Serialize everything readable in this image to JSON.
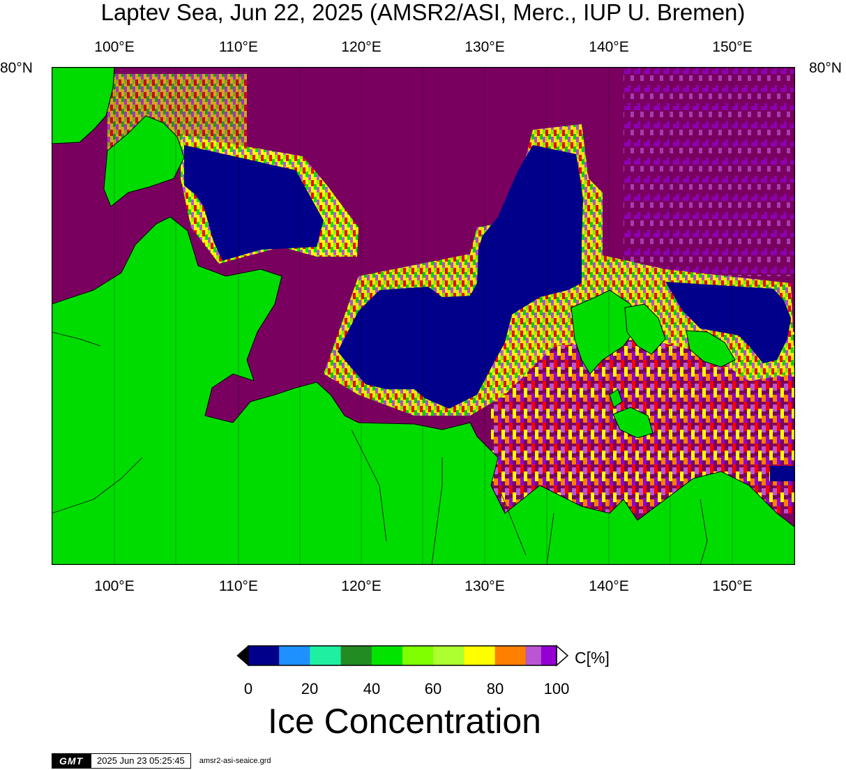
{
  "title": "Laptev Sea, Jun 22, 2025 (AMSR2/ASI, Merc., IUP U. Bremen)",
  "lon_labels": [
    "100°E",
    "110°E",
    "120°E",
    "130°E",
    "140°E",
    "150°E"
  ],
  "lat_label_left": "80°N",
  "lat_label_right": "80°N",
  "colorbar": {
    "unit": "C[%]",
    "label": "Ice Concentration",
    "ticks": [
      "0",
      "20",
      "40",
      "60",
      "80",
      "100"
    ],
    "colors": [
      "#00008b",
      "#1e90ff",
      "#1ef0a0",
      "#228b22",
      "#00e400",
      "#7fff00",
      "#adff2f",
      "#ffff00",
      "#ff7f00",
      "#ff0000",
      "#ba55d3",
      "#9400d3"
    ],
    "overflow_color": "#7a0060"
  },
  "colors": {
    "land": "#00dc00",
    "open_water": "#00008b",
    "full_ice": "#7a0060"
  },
  "footer": {
    "logo": "GMT",
    "timestamp": "2025 Jun 23 05:25:45",
    "filename": "amsr2-asi-seaice.grd"
  }
}
